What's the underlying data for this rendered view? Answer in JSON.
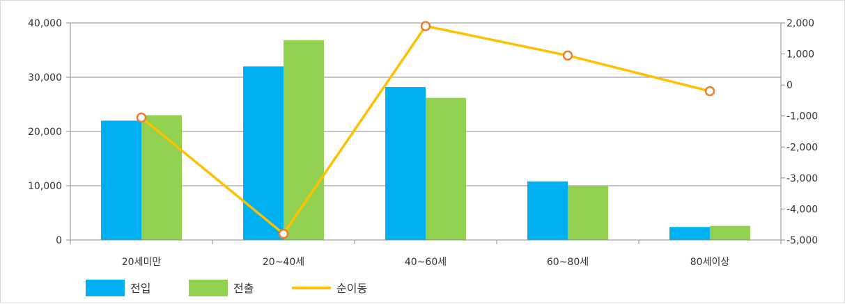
{
  "chart_data": {
    "type": "bar",
    "categories": [
      "20세미만",
      "20~40세",
      "40~60세",
      "60~80세",
      "80세이상"
    ],
    "series": [
      {
        "name": "전입",
        "kind": "bar",
        "axis": "left",
        "color": "#00b0f0",
        "values": [
          22000,
          32000,
          28200,
          10800,
          2400
        ]
      },
      {
        "name": "전출",
        "kind": "bar",
        "axis": "left",
        "color": "#92d050",
        "values": [
          23000,
          36800,
          26200,
          10000,
          2600
        ]
      },
      {
        "name": "순이동",
        "kind": "line",
        "axis": "right",
        "color": "#ffc000",
        "marker_stroke": "#ed7d31",
        "values": [
          -1050,
          -4800,
          1900,
          950,
          -200
        ]
      }
    ],
    "left_axis": {
      "ylim": [
        0,
        40000
      ],
      "ticks": [
        0,
        10000,
        20000,
        30000,
        40000
      ],
      "tick_labels": [
        "0",
        "10,000",
        "20,000",
        "30,000",
        "40,000"
      ]
    },
    "right_axis": {
      "ylim": [
        -5000,
        2000
      ],
      "ticks": [
        -5000,
        -4000,
        -3000,
        -2000,
        -1000,
        0,
        1000,
        2000
      ],
      "tick_labels": [
        "-5,000",
        "-4,000",
        "-3,000",
        "-2,000",
        "-1,000",
        "0",
        "1,000",
        "2,000"
      ]
    },
    "grid": true,
    "legend": "bottom-left",
    "title": "",
    "xlabel": "",
    "ylabel": ""
  }
}
